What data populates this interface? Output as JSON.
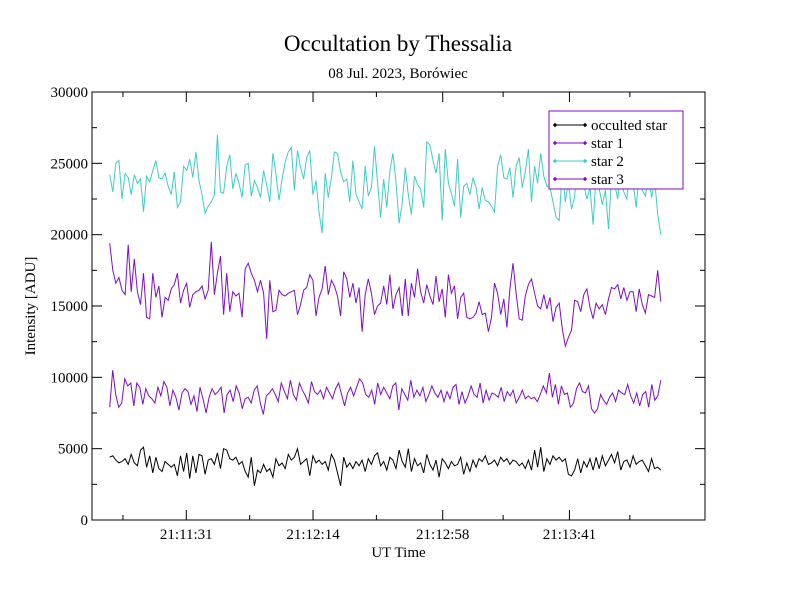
{
  "chart_data": {
    "type": "line",
    "title": "Occultation by Thessalia",
    "subtitle": "08 Jul. 2023, Borówiec",
    "xlabel": "UT Time",
    "ylabel": "Intensity [ADU]",
    "ylim": [
      0,
      30000
    ],
    "yticks": [
      0,
      5000,
      10000,
      15000,
      20000,
      25000,
      30000
    ],
    "ytick_labels": [
      "0",
      "5000",
      "10000",
      "15000",
      "20000",
      "25000",
      "30000"
    ],
    "xlim": [
      "21:10:59",
      "21:14:27"
    ],
    "xticks": [
      "21:11:31",
      "21:12:14",
      "21:12:58",
      "21:13:41"
    ],
    "grid": false,
    "legend_position": "top-right",
    "x_start": "21:11:05",
    "x_end": "21:14:12",
    "series": [
      {
        "name": "occulted star",
        "color": "#000000",
        "values": [
          4400,
          4500,
          4200,
          4000,
          4100,
          4300,
          3900,
          4600,
          4000,
          3800,
          4900,
          5100,
          3700,
          4500,
          3300,
          4400,
          3600,
          3400,
          4100,
          3900,
          3700,
          3900,
          3100,
          4500,
          3400,
          4700,
          2900,
          4500,
          3300,
          4600,
          4500,
          3200,
          4200,
          4300,
          3900,
          4700,
          3600,
          5000,
          4900,
          4300,
          4200,
          4400,
          3900,
          4100,
          3400,
          3000,
          4400,
          2400,
          3500,
          3300,
          3900,
          3400,
          3600,
          3000,
          4300,
          3800,
          4000,
          3600,
          4600,
          4200,
          4400,
          5000,
          3900,
          4100,
          4300,
          3100,
          4500,
          4000,
          4200,
          3900,
          4100,
          3500,
          4600,
          4200,
          3300,
          2400,
          4400,
          3700,
          4000,
          3600,
          4100,
          3800,
          4200,
          3400,
          4300,
          3900,
          4500,
          4700,
          3800,
          4100,
          3500,
          4400,
          4200,
          3600,
          4900,
          4100,
          3700,
          5000,
          3400,
          4300,
          3800,
          4000,
          3300,
          4600,
          3900,
          3500,
          4200,
          3000,
          4300,
          4000,
          3600,
          4100,
          3800,
          3900,
          4400,
          3200,
          4000,
          3400,
          4200,
          3700,
          4300,
          4100,
          4500,
          3900,
          4000,
          4200,
          3800,
          4400,
          4100,
          4300,
          3900,
          4200,
          4100,
          3800,
          4000,
          3600,
          4200,
          3500,
          4900,
          3700,
          5100,
          3400,
          4300,
          3900,
          4500,
          4200,
          4400,
          4100,
          4300,
          3200,
          3100,
          3500,
          4300,
          3300,
          4100,
          3700,
          4300,
          3500,
          4400,
          3600,
          4500,
          3800,
          4200,
          4600,
          4000,
          4800,
          3500,
          4100,
          4200,
          3700,
          4500,
          3900,
          4100,
          4200,
          3800,
          3400,
          4300,
          3600,
          3700,
          3500
        ]
      },
      {
        "name": "star 1",
        "color": "#7e0dc9",
        "values": [
          19400,
          17500,
          16600,
          17000,
          16100,
          15800,
          19300,
          16000,
          18300,
          16000,
          15100,
          17300,
          14200,
          14100,
          17300,
          15600,
          16400,
          14200,
          15600,
          15400,
          16200,
          16500,
          17300,
          15200,
          16100,
          16600,
          14900,
          15800,
          16000,
          16100,
          16400,
          15500,
          16100,
          19500,
          15800,
          17300,
          18500,
          14400,
          17300,
          14600,
          16000,
          15700,
          15900,
          14200,
          17600,
          18000,
          17300,
          16800,
          16000,
          16800,
          15900,
          12700,
          16800,
          14600,
          14700,
          16100,
          15800,
          15700,
          15900,
          16000,
          16100,
          14400,
          15100,
          16100,
          16300,
          17200,
          16800,
          14300,
          15600,
          16200,
          17800,
          15800,
          16800,
          16400,
          15700,
          14300,
          17400,
          16900,
          15600,
          16600,
          15200,
          16300,
          13200,
          15800,
          16900,
          15900,
          14400,
          15000,
          15200,
          16400,
          15100,
          17200,
          14800,
          15800,
          16300,
          14300,
          16900,
          14300,
          16600,
          15600,
          17600,
          16000,
          15200,
          16500,
          15700,
          15100,
          17100,
          15300,
          16200,
          14200,
          17200,
          15900,
          16400,
          14100,
          15600,
          15900,
          14200,
          14100,
          14200,
          14500,
          15300,
          14400,
          14500,
          13200,
          14200,
          16600,
          15900,
          14400,
          15500,
          13500,
          16200,
          18000,
          15900,
          14100,
          14000,
          15700,
          16500,
          16900,
          15900,
          15000,
          14800,
          15800,
          14800,
          15600,
          13900,
          14900,
          15200,
          13400,
          12200,
          12800,
          13300,
          15400,
          15300,
          14600,
          15800,
          16200,
          14900,
          14100,
          15200,
          14800,
          15100,
          14400,
          15500,
          16300,
          16200,
          16500,
          15500,
          16300,
          15400,
          16000,
          16000,
          14600,
          16200,
          15100,
          14500,
          15800,
          15700,
          15600,
          17500,
          15300
        ]
      },
      {
        "name": "star 2",
        "color": "#3ecdc4",
        "values": [
          24200,
          23000,
          25000,
          25200,
          22500,
          24300,
          24000,
          22800,
          24200,
          23600,
          23900,
          21600,
          24100,
          23700,
          24500,
          25200,
          24000,
          23900,
          24300,
          23400,
          22800,
          24400,
          21900,
          22300,
          24800,
          24500,
          25300,
          24000,
          25800,
          23800,
          22800,
          21500,
          22000,
          22300,
          22800,
          27000,
          23000,
          22900,
          24800,
          25600,
          23200,
          24300,
          23600,
          22600,
          24900,
          25000,
          22700,
          23800,
          23300,
          22600,
          24500,
          23500,
          22300,
          25700,
          24300,
          22400,
          23900,
          25100,
          25800,
          26100,
          23100,
          25900,
          24700,
          23900,
          25400,
          25900,
          22800,
          23800,
          21600,
          20100,
          24300,
          22600,
          24000,
          25800,
          25700,
          24400,
          23700,
          23900,
          22300,
          25200,
          22800,
          22300,
          21800,
          24800,
          22700,
          23300,
          26200,
          23700,
          21200,
          23900,
          21900,
          24500,
          25700,
          23700,
          20800,
          22200,
          24700,
          22800,
          21400,
          24100,
          23500,
          23200,
          21900,
          26500,
          26300,
          25200,
          24300,
          25700,
          21000,
          26000,
          23600,
          22900,
          22000,
          25300,
          21200,
          23400,
          23600,
          22800,
          24000,
          23300,
          21800,
          23300,
          22400,
          22300,
          22000,
          21600,
          24800,
          25600,
          24000,
          23900,
          24700,
          22600,
          24800,
          25400,
          23300,
          24400,
          26000,
          22300,
          24800,
          23600,
          25700,
          24100,
          23400,
          23300,
          22300,
          21200,
          21000,
          24600,
          22300,
          23700,
          21800,
          22600,
          25800,
          24500,
          23500,
          22500,
          23300,
          20700,
          24200,
          23200,
          22100,
          23100,
          20400,
          24000,
          23600,
          22500,
          24300,
          23000,
          22500,
          24800,
          23700,
          21900,
          24400,
          23100,
          22700,
          24100,
          22600,
          23900,
          21400,
          20000
        ]
      },
      {
        "name": "star 3",
        "color": "#7e0dc9",
        "values": [
          7900,
          10500,
          8800,
          7900,
          8200,
          9900,
          9400,
          9600,
          8000,
          9600,
          9300,
          8100,
          9200,
          8700,
          8500,
          8200,
          9300,
          8700,
          9700,
          9300,
          8000,
          9100,
          8600,
          7700,
          8900,
          9200,
          9000,
          8100,
          8700,
          7600,
          9300,
          8500,
          7500,
          8600,
          9200,
          8800,
          9000,
          9300,
          7500,
          8800,
          9100,
          8300,
          9400,
          8900,
          7800,
          8500,
          8600,
          8200,
          9100,
          9400,
          8200,
          7400,
          8700,
          8900,
          9200,
          8800,
          8300,
          9600,
          9000,
          8500,
          9800,
          8800,
          8400,
          9600,
          9100,
          8700,
          8200,
          9700,
          9000,
          8800,
          9100,
          8500,
          9300,
          8900,
          8500,
          9200,
          9600,
          8800,
          8000,
          8900,
          9300,
          8700,
          9300,
          9900,
          9600,
          8800,
          8600,
          9100,
          8100,
          9600,
          8800,
          9300,
          8900,
          8500,
          9400,
          9600,
          7700,
          9200,
          8800,
          8400,
          9800,
          8600,
          9100,
          8700,
          9300,
          8300,
          8800,
          9400,
          8900,
          8600,
          9100,
          8300,
          9000,
          8500,
          9300,
          9500,
          8100,
          9000,
          8200,
          8700,
          9400,
          8800,
          8600,
          9600,
          8200,
          9100,
          8400,
          8900,
          8800,
          8600,
          9300,
          8300,
          9000,
          8700,
          9100,
          8200,
          8600,
          9100,
          8500,
          8700,
          8500,
          8600,
          8300,
          8800,
          9400,
          8900,
          10300,
          8600,
          9500,
          8100,
          9400,
          8800,
          8900,
          7900,
          8200,
          9200,
          9600,
          9000,
          8900,
          9400,
          7800,
          7500,
          7800,
          8800,
          8400,
          8100,
          8600,
          8900,
          8300,
          9100,
          8900,
          8800,
          9500,
          8700,
          8200,
          8900,
          8000,
          8800,
          9000,
          7900,
          9500,
          8400,
          8700,
          9800
        ]
      }
    ]
  }
}
